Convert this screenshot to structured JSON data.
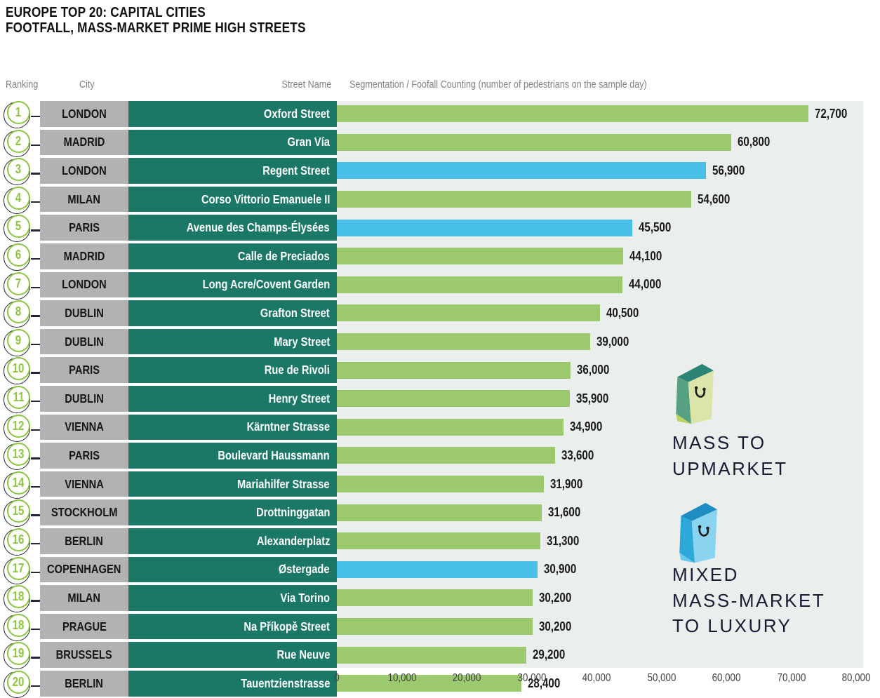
{
  "title": {
    "line1": "EUROPE TOP 20: CAPITAL CITIES",
    "line2": "FOOTFALL, MASS-MARKET PRIME HIGH STREETS"
  },
  "columns": {
    "ranking": "Ranking",
    "city": "City",
    "street": "Street Name",
    "segmentation": "Segmentation / Foofall Counting (number of pedestrians on the sample day)"
  },
  "chart_data": {
    "type": "bar",
    "orientation": "horizontal",
    "title": "Europe Top 20: Capital Cities — Footfall, Mass-Market Prime High Streets",
    "xlabel": "Footfall counting (number of pedestrians on the sample day)",
    "xlim": [
      0,
      80000
    ],
    "grid": false,
    "x_ticks": [
      "0",
      "10,000",
      "20,000",
      "30,000",
      "40,000",
      "50,000",
      "60,000",
      "70,000",
      "80,000"
    ],
    "rows": [
      {
        "rank": "1",
        "city": "LONDON",
        "street": "Oxford Street",
        "value": 72700,
        "label": "72,700",
        "segment": "mass"
      },
      {
        "rank": "2",
        "city": "MADRID",
        "street": "Gran Vía",
        "value": 60800,
        "label": "60,800",
        "segment": "mass"
      },
      {
        "rank": "3",
        "city": "LONDON",
        "street": "Regent Street",
        "value": 56900,
        "label": "56,900",
        "segment": "mixed"
      },
      {
        "rank": "4",
        "city": "MILAN",
        "street": "Corso Vittorio Emanuele II",
        "value": 54600,
        "label": "54,600",
        "segment": "mass"
      },
      {
        "rank": "5",
        "city": "PARIS",
        "street": "Avenue des Champs-Élysées",
        "value": 45500,
        "label": "45,500",
        "segment": "mixed"
      },
      {
        "rank": "6",
        "city": "MADRID",
        "street": "Calle de Preciados",
        "value": 44100,
        "label": "44,100",
        "segment": "mass"
      },
      {
        "rank": "7",
        "city": "LONDON",
        "street": "Long Acre/Covent Garden",
        "value": 44000,
        "label": "44,000",
        "segment": "mass"
      },
      {
        "rank": "8",
        "city": "DUBLIN",
        "street": "Grafton Street",
        "value": 40500,
        "label": "40,500",
        "segment": "mass"
      },
      {
        "rank": "9",
        "city": "DUBLIN",
        "street": "Mary Street",
        "value": 39000,
        "label": "39,000",
        "segment": "mass"
      },
      {
        "rank": "10",
        "city": "PARIS",
        "street": "Rue de Rivoli",
        "value": 36000,
        "label": "36,000",
        "segment": "mass"
      },
      {
        "rank": "11",
        "city": "DUBLIN",
        "street": "Henry Street",
        "value": 35900,
        "label": "35,900",
        "segment": "mass"
      },
      {
        "rank": "12",
        "city": "VIENNA",
        "street": "Kärntner Strasse",
        "value": 34900,
        "label": "34,900",
        "segment": "mass"
      },
      {
        "rank": "13",
        "city": "PARIS",
        "street": "Boulevard Haussmann",
        "value": 33600,
        "label": "33,600",
        "segment": "mass"
      },
      {
        "rank": "14",
        "city": "VIENNA",
        "street": "Mariahilfer Strasse",
        "value": 31900,
        "label": "31,900",
        "segment": "mass"
      },
      {
        "rank": "15",
        "city": "STOCKHOLM",
        "street": "Drottninggatan",
        "value": 31600,
        "label": "31,600",
        "segment": "mass"
      },
      {
        "rank": "16",
        "city": "BERLIN",
        "street": "Alexanderplatz",
        "value": 31300,
        "label": "31,300",
        "segment": "mass"
      },
      {
        "rank": "17",
        "city": "COPENHAGEN",
        "street": "Østergade",
        "value": 30900,
        "label": "30,900",
        "segment": "mixed"
      },
      {
        "rank": "18",
        "city": "MILAN",
        "street": "Via Torino",
        "value": 30200,
        "label": "30,200",
        "segment": "mass"
      },
      {
        "rank": "18",
        "city": "PRAGUE",
        "street": "Na Příkopě Street",
        "value": 30200,
        "label": "30,200",
        "segment": "mass"
      },
      {
        "rank": "19",
        "city": "BRUSSELS",
        "street": "Rue Neuve",
        "value": 29200,
        "label": "29,200",
        "segment": "mass"
      },
      {
        "rank": "20",
        "city": "BERLIN",
        "street": "Tauentzienstrasse",
        "value": 28400,
        "label": "28,400",
        "segment": "mass"
      }
    ],
    "legend": [
      {
        "id": "mass",
        "lines": [
          "MASS TO",
          "UPMARKET"
        ],
        "color": "#9CC96D"
      },
      {
        "id": "mixed",
        "lines": [
          "MIXED",
          "MASS-MARKET",
          "TO LUXURY"
        ],
        "color": "#47BFE8"
      }
    ],
    "legend_position": "right"
  },
  "colors": {
    "bar_green": "#9CC96D",
    "bar_blue": "#47BFE8",
    "teal_cell": "#1B7866",
    "gray_cell": "#B3B2B2",
    "plot_bg": "#EAEEEC",
    "badge_green": "#8CC63E",
    "ring_dark": "#262438",
    "bag_mass": {
      "front": "#DCE5A9",
      "side": "#55A181",
      "flap": "#2B8474",
      "accent": "#BCD45F",
      "handle": "#1E1E1E"
    },
    "bag_mixed": {
      "front": "#8AD4EF",
      "side": "#2EA7D9",
      "flap": "#1E8EC2",
      "accent": "#66C9EC",
      "handle": "#1E1E1E"
    }
  }
}
